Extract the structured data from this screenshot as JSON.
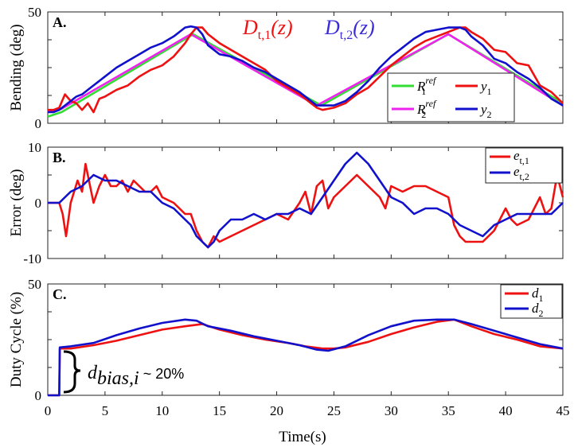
{
  "chart_data": [
    {
      "type": "line",
      "panel_label": "A.",
      "ylabel": "Bending (deg)",
      "xlim": [
        0,
        45
      ],
      "ylim": [
        0,
        50
      ],
      "yticks": [
        "0",
        "50"
      ],
      "header_labels": [
        {
          "text": "D",
          "sub": "t,1",
          "arg": "(z)",
          "color": "#ee1111"
        },
        {
          "text": "D",
          "sub": "t,2",
          "arg": "(z)",
          "color": "#3a2bd8"
        }
      ],
      "legend": [
        {
          "base": "R",
          "sub": "1",
          "sup": "ref",
          "color": "#33dd33"
        },
        {
          "base": "y",
          "sub": "1",
          "sup": "",
          "color": "#ee1111"
        },
        {
          "base": "R",
          "sub": "2",
          "sup": "ref",
          "color": "#ee22ee"
        },
        {
          "base": "y",
          "sub": "2",
          "sup": "",
          "color": "#1111cc"
        }
      ],
      "series": [
        {
          "id": "R1",
          "color": "#33dd33",
          "x": [
            0,
            1.2,
            12.7,
            23.9,
            35.0,
            45
          ],
          "y": [
            3,
            5,
            40,
            8,
            40,
            9
          ]
        },
        {
          "id": "R2",
          "color": "#ee22ee",
          "x": [
            0,
            1.2,
            12.5,
            23.5,
            35.0,
            45
          ],
          "y": [
            5,
            6.5,
            40,
            8,
            40,
            8
          ]
        },
        {
          "id": "y1",
          "color": "#ee1111",
          "x": [
            0,
            0.5,
            1.0,
            1.5,
            2.0,
            2.5,
            3.0,
            3.5,
            4.0,
            4.5,
            5.0,
            6.0,
            7.0,
            8.0,
            9.0,
            10.0,
            11.0,
            12.0,
            12.5,
            13.0,
            13.5,
            14.0,
            15.0,
            16.0,
            17.0,
            18.0,
            19.0,
            20.0,
            21.0,
            22.0,
            23.0,
            23.5,
            24.0,
            25.0,
            26.0,
            27.0,
            28.0,
            29.0,
            30.0,
            31.0,
            32.0,
            33.0,
            34.0,
            35.0,
            36.0,
            36.5,
            37.0,
            38.0,
            39.0,
            40.0,
            41.0,
            42.0,
            43.0,
            44.0,
            45.0
          ],
          "y": [
            6,
            6,
            7,
            13,
            10,
            9,
            6,
            9,
            5,
            11,
            12,
            15,
            17,
            21,
            24,
            26,
            30,
            36,
            40,
            43,
            43,
            40,
            36,
            33,
            30,
            27,
            24,
            19,
            16,
            13,
            9,
            7,
            6,
            7,
            9,
            13,
            16,
            21,
            26,
            30,
            34,
            37,
            39,
            41,
            43,
            43,
            41,
            38,
            33,
            32,
            27,
            26,
            17,
            14,
            9
          ]
        },
        {
          "id": "y2",
          "color": "#1111cc",
          "x": [
            0,
            0.5,
            1.0,
            1.5,
            2.0,
            2.5,
            3.0,
            3.5,
            4.0,
            4.5,
            5.0,
            6.0,
            7.0,
            8.0,
            9.0,
            10.0,
            11.0,
            12.0,
            12.5,
            13.0,
            13.5,
            14.0,
            15.0,
            16.0,
            17.0,
            18.0,
            19.0,
            20.0,
            21.0,
            22.0,
            23.0,
            23.5,
            24.0,
            25.0,
            26.0,
            27.0,
            28.0,
            29.0,
            30.0,
            31.0,
            32.0,
            33.0,
            34.0,
            35.0,
            36.0,
            36.5,
            37.0,
            38.0,
            39.0,
            40.0,
            41.0,
            42.0,
            43.0,
            44.0,
            45.0
          ],
          "y": [
            5,
            5,
            6,
            8,
            10,
            12,
            13,
            15,
            17,
            19,
            21,
            25,
            28,
            31,
            34,
            36,
            39,
            43,
            43.5,
            43,
            40,
            35,
            31,
            30,
            28,
            25,
            23,
            20,
            17,
            14,
            10,
            8,
            8,
            8,
            10,
            14,
            19,
            25,
            30,
            34,
            38,
            41,
            42,
            43,
            43,
            42,
            39,
            35,
            29,
            27,
            23,
            20,
            16,
            11,
            8
          ]
        }
      ]
    },
    {
      "type": "line",
      "panel_label": "B.",
      "ylabel": "Error (deg)",
      "xlim": [
        0,
        45
      ],
      "ylim": [
        -10,
        10
      ],
      "yticks": [
        "-10",
        "0",
        "10"
      ],
      "legend": [
        {
          "base": "e",
          "sub": "t,1",
          "sup": "",
          "color": "#ee1111"
        },
        {
          "base": "e",
          "sub": "t,2",
          "sup": "",
          "color": "#1111cc"
        }
      ],
      "series": [
        {
          "id": "e1",
          "color": "#ee1111",
          "x": [
            0,
            0.5,
            1.0,
            1.3,
            1.6,
            1.8,
            2.0,
            2.3,
            2.6,
            3.0,
            3.3,
            3.5,
            4.0,
            4.5,
            5.0,
            5.5,
            6.0,
            6.5,
            7.0,
            7.5,
            8.0,
            8.5,
            9.0,
            9.5,
            10.0,
            11.0,
            12.0,
            12.5,
            13.0,
            13.5,
            14.0,
            14.5,
            15.0,
            16.0,
            17.0,
            18.0,
            19.0,
            20.0,
            21.0,
            22.0,
            22.5,
            23.0,
            23.5,
            24.0,
            24.5,
            25.0,
            26.0,
            27.0,
            28.0,
            29.0,
            29.5,
            30.0,
            31.0,
            32.0,
            33.0,
            34.0,
            35.0,
            35.5,
            36.0,
            36.5,
            37.0,
            38.0,
            39.0,
            40.0,
            40.5,
            41.0,
            42.0,
            42.5,
            43.0,
            43.5,
            44.0,
            44.5,
            45.0
          ],
          "y": [
            0,
            0,
            0,
            -2,
            -6,
            -3,
            0,
            2,
            4,
            2,
            7,
            5,
            0,
            3,
            5,
            3,
            3,
            4,
            2,
            4,
            3,
            2,
            2,
            3,
            1,
            0,
            -2,
            -2,
            -5,
            -7,
            -8,
            -6,
            -7,
            -6,
            -5,
            -4,
            -3,
            -2,
            -3,
            0,
            2,
            -2,
            3,
            4,
            -1,
            1,
            3,
            5,
            3,
            1,
            -1,
            3,
            2,
            3,
            3,
            2,
            1,
            -4,
            -6,
            -7,
            -7,
            -7,
            -5,
            -1,
            -3,
            -4,
            -3,
            -1,
            1,
            -2,
            -1,
            5,
            1
          ]
        },
        {
          "id": "e2",
          "color": "#1111cc",
          "x": [
            0,
            1.0,
            1.5,
            2.0,
            3.0,
            4.0,
            5.0,
            6.0,
            7.0,
            8.0,
            9.0,
            10.0,
            11.0,
            12.0,
            12.5,
            13.0,
            13.5,
            14.0,
            14.5,
            15.0,
            16.0,
            17.0,
            18.0,
            19.0,
            20.0,
            21.0,
            22.0,
            23.0,
            24.0,
            25.0,
            26.0,
            27.0,
            28.0,
            29.0,
            30.0,
            31.0,
            32.0,
            33.0,
            34.0,
            35.0,
            36.0,
            37.0,
            38.0,
            39.0,
            40.0,
            41.0,
            42.0,
            43.0,
            44.0,
            45.0
          ],
          "y": [
            0,
            0,
            1,
            2,
            3,
            5,
            4,
            4,
            3,
            2,
            2,
            0,
            -1,
            -3,
            -4,
            -6,
            -7,
            -8,
            -7,
            -5,
            -3,
            -3,
            -2,
            -3,
            -2,
            -2,
            -1,
            -2,
            1,
            4,
            7,
            9,
            7,
            4,
            1,
            0,
            -2,
            -1,
            -1,
            -2,
            -4,
            -5,
            -6,
            -4,
            -3,
            -2,
            -2,
            -2,
            -2,
            0
          ]
        }
      ]
    },
    {
      "type": "line",
      "panel_label": "C.",
      "ylabel": "Duty Cycle (%)",
      "xlabel": "Time(s)",
      "xlim": [
        0,
        45
      ],
      "ylim": [
        0,
        50
      ],
      "yticks": [
        "0",
        "50"
      ],
      "xticks": [
        "0",
        "5",
        "10",
        "15",
        "20",
        "25",
        "30",
        "35",
        "40",
        "45"
      ],
      "legend": [
        {
          "base": "d",
          "sub": "1",
          "sup": "",
          "color": "#ee1111"
        },
        {
          "base": "d",
          "sub": "2",
          "sup": "",
          "color": "#1111cc"
        }
      ],
      "annotation": {
        "symbol": "d",
        "sub": "bias,i",
        "text": " ~ 20%"
      },
      "series": [
        {
          "id": "d1",
          "color": "#ee1111",
          "x": [
            0,
            1.0,
            1.05,
            2.0,
            4.0,
            6.0,
            8.0,
            10.0,
            12.0,
            13.5,
            15.0,
            17.0,
            19.0,
            21.0,
            22.5,
            24.0,
            25.0,
            26.0,
            28.0,
            30.0,
            32.0,
            34.0,
            35.5,
            37.0,
            39.0,
            41.0,
            43.0,
            45.0
          ],
          "y": [
            0,
            0,
            21,
            21,
            22.5,
            24.5,
            27,
            29.5,
            31,
            32,
            29.5,
            27,
            25,
            23.5,
            22,
            21,
            21,
            21.5,
            24,
            27.5,
            30.5,
            33,
            34,
            31,
            27.5,
            25,
            22,
            21
          ]
        },
        {
          "id": "d2",
          "color": "#1111cc",
          "x": [
            0,
            1.0,
            1.05,
            2.0,
            4.0,
            6.0,
            8.0,
            10.0,
            12.0,
            13.0,
            14.0,
            16.0,
            18.0,
            20.0,
            22.0,
            23.5,
            24.5,
            26.0,
            28.0,
            30.0,
            32.0,
            34.0,
            35.5,
            37.0,
            39.0,
            41.0,
            43.0,
            45.0
          ],
          "y": [
            0,
            0,
            21.5,
            22,
            23.5,
            27,
            30,
            32.5,
            34,
            33.5,
            31,
            29,
            26.5,
            24.5,
            22.5,
            20.5,
            20,
            22,
            27,
            31,
            33.5,
            34,
            34,
            32,
            29,
            26,
            23,
            21
          ]
        }
      ]
    }
  ]
}
